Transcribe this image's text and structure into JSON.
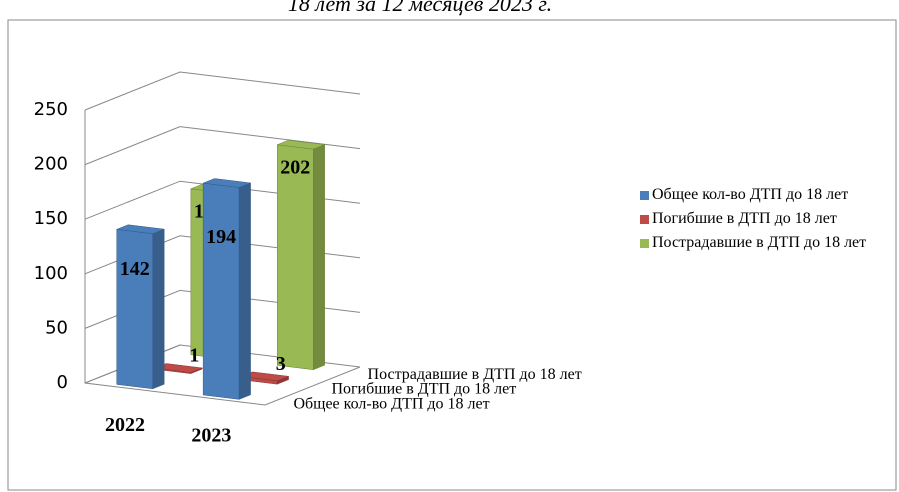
{
  "chart_data": {
    "type": "bar3d",
    "title": "18 лет за 12 месяцев 2023 г.",
    "categories": [
      "2022",
      "2023"
    ],
    "series": [
      {
        "name": "Общее кол-во ДТП до 18 лет",
        "color": "#4a7ebb",
        "values": [
          142,
          194
        ]
      },
      {
        "name": "Погибшие в ДТП до 18 лет",
        "color": "#be4b48",
        "values": [
          1,
          3
        ]
      },
      {
        "name": "Пострадавшие в ДТП до 18 лет",
        "color": "#98b954",
        "values": [
          152,
          202
        ]
      }
    ],
    "ylim": [
      0,
      250
    ],
    "yticks": [
      0,
      50,
      100,
      150,
      200,
      250
    ],
    "grid": true,
    "legend": "right"
  }
}
